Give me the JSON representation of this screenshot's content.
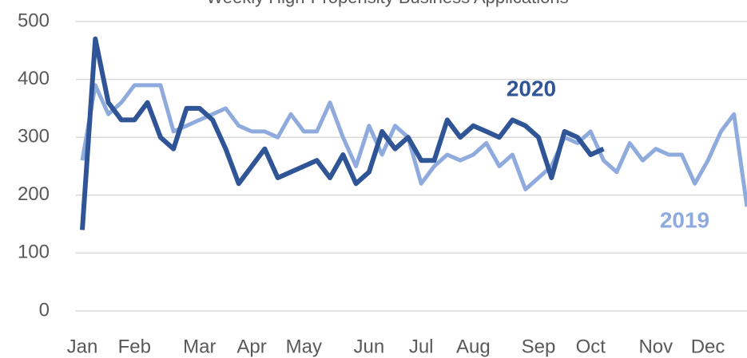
{
  "chart_data": {
    "type": "line",
    "title": "Weekly High-Propensity Business Applications",
    "categories": [
      "Jan",
      null,
      null,
      null,
      "Feb",
      null,
      null,
      null,
      null,
      "Mar",
      null,
      null,
      null,
      "Apr",
      null,
      null,
      null,
      "May",
      null,
      null,
      null,
      null,
      "Jun",
      null,
      null,
      null,
      "Jul",
      null,
      null,
      null,
      "Aug",
      null,
      null,
      null,
      null,
      "Sep",
      null,
      null,
      null,
      "Oct",
      null,
      null,
      null,
      null,
      "Nov",
      null,
      null,
      null,
      "Dec",
      null,
      null,
      null
    ],
    "series": [
      {
        "name": "2019",
        "color": "#8faadc",
        "values": [
          260,
          390,
          340,
          360,
          390,
          390,
          390,
          310,
          320,
          330,
          340,
          350,
          320,
          310,
          310,
          300,
          340,
          310,
          310,
          360,
          300,
          250,
          320,
          270,
          320,
          300,
          220,
          250,
          270,
          260,
          270,
          290,
          250,
          270,
          210,
          230,
          250,
          300,
          290,
          310,
          260,
          240,
          290,
          260,
          280,
          270,
          270,
          220,
          260,
          310,
          340,
          180
        ]
      },
      {
        "name": "2020",
        "color": "#2f5597",
        "values": [
          140,
          470,
          360,
          330,
          330,
          360,
          300,
          280,
          350,
          350,
          330,
          280,
          220,
          250,
          280,
          230,
          240,
          250,
          260,
          230,
          270,
          220,
          240,
          310,
          280,
          300,
          260,
          260,
          330,
          300,
          320,
          310,
          300,
          330,
          320,
          300,
          230,
          310,
          300,
          270,
          280,
          null,
          null,
          null,
          null,
          null,
          null,
          null,
          null,
          null,
          null,
          null
        ]
      }
    ],
    "ylim": [
      0,
      500
    ],
    "yticks": [
      0,
      100,
      200,
      300,
      400,
      500
    ],
    "grid": true
  }
}
